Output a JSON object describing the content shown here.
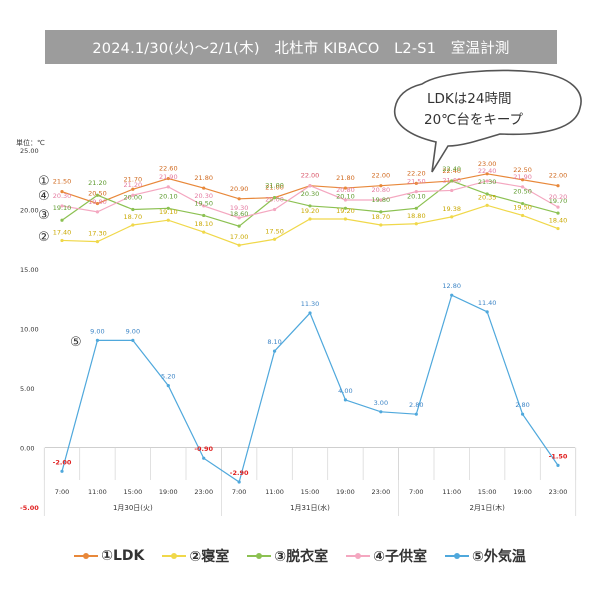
{
  "header": {
    "title": "2024.1/30(火)～2/1(木)　北杜市 KIBACO　L2-S1　室温計測"
  },
  "callout": {
    "line1": "LDKは24時間",
    "line2": "20℃台をキープ"
  },
  "chart_data": {
    "type": "line",
    "title": "2024.1/30(火)～2/1(木)　北杜市 KIBACO　L2-S1　室温計測",
    "ylabel": "単位：℃",
    "ylim": [
      -5,
      25
    ],
    "yticks": [
      -5,
      0,
      5,
      10,
      15,
      20,
      25
    ],
    "ytick_labels": [
      "-5.00",
      "0.00",
      "5.00",
      "10.00",
      "15.00",
      "20.00",
      "25.00"
    ],
    "categories": [
      "7:00",
      "11:00",
      "15:00",
      "19:00",
      "23:00",
      "7:00",
      "11:00",
      "15:00",
      "19:00",
      "23:00",
      "7:00",
      "11:00",
      "15:00",
      "19:00",
      "23:00"
    ],
    "day_labels": [
      "1月30日(火)",
      "1月31日(水)",
      "2月1日(木)"
    ],
    "series": [
      {
        "name": "①LDK",
        "marker": "①",
        "color": "#E8883A",
        "label_color": "#D0691E",
        "values": [
          21.5,
          20.5,
          21.7,
          22.6,
          21.8,
          20.9,
          21.0,
          22.0,
          21.8,
          22.0,
          22.2,
          22.4,
          23.0,
          22.5,
          22.0
        ]
      },
      {
        "name": "②寝室",
        "marker": "②",
        "color": "#F0D84A",
        "label_color": "#C9A800",
        "values": [
          17.4,
          17.3,
          18.7,
          19.1,
          18.1,
          17.0,
          17.5,
          19.2,
          19.2,
          18.7,
          18.8,
          19.38,
          20.35,
          19.5,
          18.4
        ]
      },
      {
        "name": "③脱衣室",
        "marker": "③",
        "color": "#8CC152",
        "label_color": "#5E9B2E",
        "values": [
          19.1,
          21.2,
          20.0,
          20.1,
          19.5,
          18.6,
          21.0,
          20.3,
          20.1,
          19.8,
          20.1,
          22.4,
          21.3,
          20.5,
          19.7
        ]
      },
      {
        "name": "④子供室",
        "marker": "④",
        "color": "#F4A7C0",
        "label_color": "#E47AA0",
        "values": [
          20.3,
          19.8,
          21.2,
          21.9,
          20.3,
          19.3,
          20.0,
          22.0,
          20.8,
          20.8,
          21.5,
          21.6,
          22.4,
          21.9,
          20.2
        ]
      },
      {
        "name": "⑤外気温",
        "marker": "⑤",
        "color": "#4FA8DC",
        "label_color": "#3D85C6",
        "values": [
          -2.0,
          9.0,
          9.0,
          5.2,
          -0.9,
          -2.9,
          8.1,
          11.3,
          4.0,
          3.0,
          2.8,
          12.8,
          11.4,
          2.8,
          -1.5
        ]
      }
    ],
    "value_labels": {
      "①LDK": [
        "21.50",
        "20.50",
        "21.70",
        "22.60",
        "21.80",
        "20.90",
        "21.00",
        "22.00",
        "21.80",
        "22.00",
        "22.20",
        "22.40",
        "23.00",
        "22.50",
        "22.00"
      ],
      "②寝室": [
        "17.40",
        "17.30",
        "18.70",
        "19.10",
        "18.10",
        "17.00",
        "17.50",
        "19.20",
        "19.20",
        "18.70",
        "18.80",
        "19.38",
        "20.35",
        "19.50",
        "18.40"
      ],
      "③脱衣室": [
        "19.10",
        "21.20",
        "20.00",
        "20.10",
        "19.50",
        "18.60",
        "21.00",
        "20.30",
        "20.10",
        "19.80",
        "20.10",
        "22.40",
        "21.30",
        "20.50",
        "19.70"
      ],
      "④子供室": [
        "20.30",
        "19.80",
        "21.20",
        "21.90",
        "20.30",
        "19.30",
        "20.00",
        "22.00",
        "20.80",
        "20.80",
        "21.50",
        "21.60",
        "22.40",
        "21.90",
        "20.20"
      ],
      "⑤外気温": [
        "-2.00",
        "9.00",
        "9.00",
        "5.20",
        "-0.90",
        "-2.90",
        "8.10",
        "11.30",
        "4.00",
        "3.00",
        "2.80",
        "12.80",
        "11.40",
        "2.80",
        "-1.50"
      ]
    },
    "negative_label_color": "#E02020",
    "grid": false,
    "legend_position": "bottom"
  }
}
